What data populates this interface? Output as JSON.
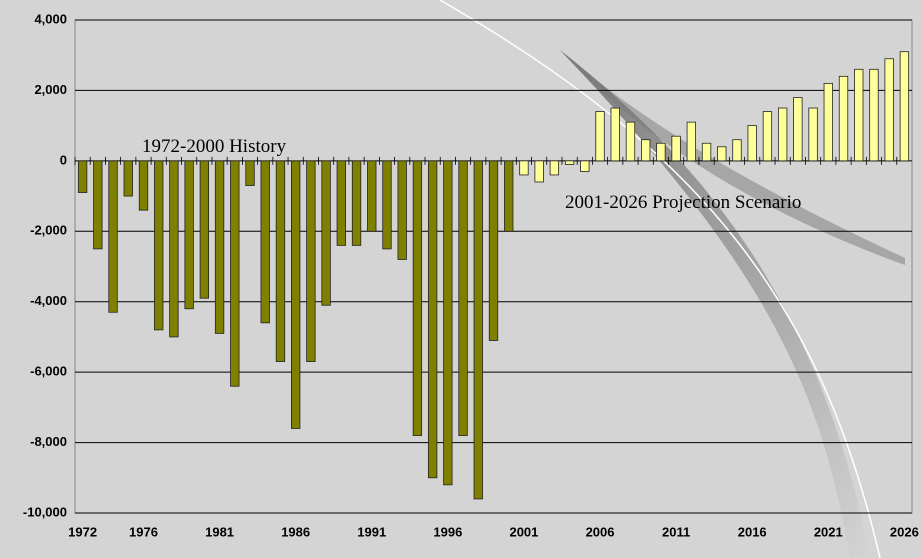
{
  "chart_data": {
    "type": "bar",
    "categories": [
      "1972",
      null,
      null,
      null,
      "1976",
      null,
      null,
      null,
      null,
      "1981",
      null,
      null,
      null,
      null,
      "1986",
      null,
      null,
      null,
      null,
      "1991",
      null,
      null,
      null,
      null,
      "1996",
      null,
      null,
      null,
      null,
      "2001",
      null,
      null,
      null,
      null,
      "2006",
      null,
      null,
      null,
      null,
      "2011",
      null,
      null,
      null,
      null,
      "2016",
      null,
      null,
      null,
      null,
      "2021",
      null,
      null,
      null,
      null,
      "2026"
    ],
    "series": [
      {
        "name": "1972-2000 History",
        "color": "#808000",
        "values": [
          -900,
          -2500,
          -4300,
          -1000,
          -1400,
          -4800,
          -5000,
          -4200,
          -3900,
          -4900,
          -6400,
          -700,
          -4600,
          -5700,
          -7600,
          -5700,
          -4100,
          -2400,
          -2400,
          -2000,
          -2500,
          -2800,
          -7800,
          -9000,
          -9200,
          -7800,
          -9600,
          -5100,
          -2000,
          null,
          null,
          null,
          null,
          null,
          null,
          null,
          null,
          null,
          null,
          null,
          null,
          null,
          null,
          null,
          null,
          null,
          null,
          null,
          null,
          null,
          null,
          null,
          null,
          null,
          null
        ]
      },
      {
        "name": "2001-2026 Projection Scenario",
        "color": "#ffff99",
        "values": [
          null,
          null,
          null,
          null,
          null,
          null,
          null,
          null,
          null,
          null,
          null,
          null,
          null,
          null,
          null,
          null,
          null,
          null,
          null,
          null,
          null,
          null,
          null,
          null,
          null,
          null,
          null,
          null,
          null,
          -400,
          -600,
          -400,
          -100,
          -300,
          1400,
          1500,
          1100,
          600,
          500,
          700,
          1100,
          500,
          400,
          600,
          1000,
          1400,
          1500,
          1800,
          1500,
          2200,
          2400,
          2600,
          2600,
          2900,
          3100
        ]
      }
    ],
    "ylim": [
      -10000,
      4000
    ],
    "yticks": [
      {
        "value": -10000,
        "label": "-10,000"
      },
      {
        "value": -8000,
        "label": "-8,000"
      },
      {
        "value": -6000,
        "label": "-6,000"
      },
      {
        "value": -4000,
        "label": "-4,000"
      },
      {
        "value": -2000,
        "label": "-2,000"
      },
      0,
      {
        "value": 2000,
        "label": "2,000"
      },
      {
        "value": 4000,
        "label": "4,000"
      }
    ],
    "grid": true
  }
}
